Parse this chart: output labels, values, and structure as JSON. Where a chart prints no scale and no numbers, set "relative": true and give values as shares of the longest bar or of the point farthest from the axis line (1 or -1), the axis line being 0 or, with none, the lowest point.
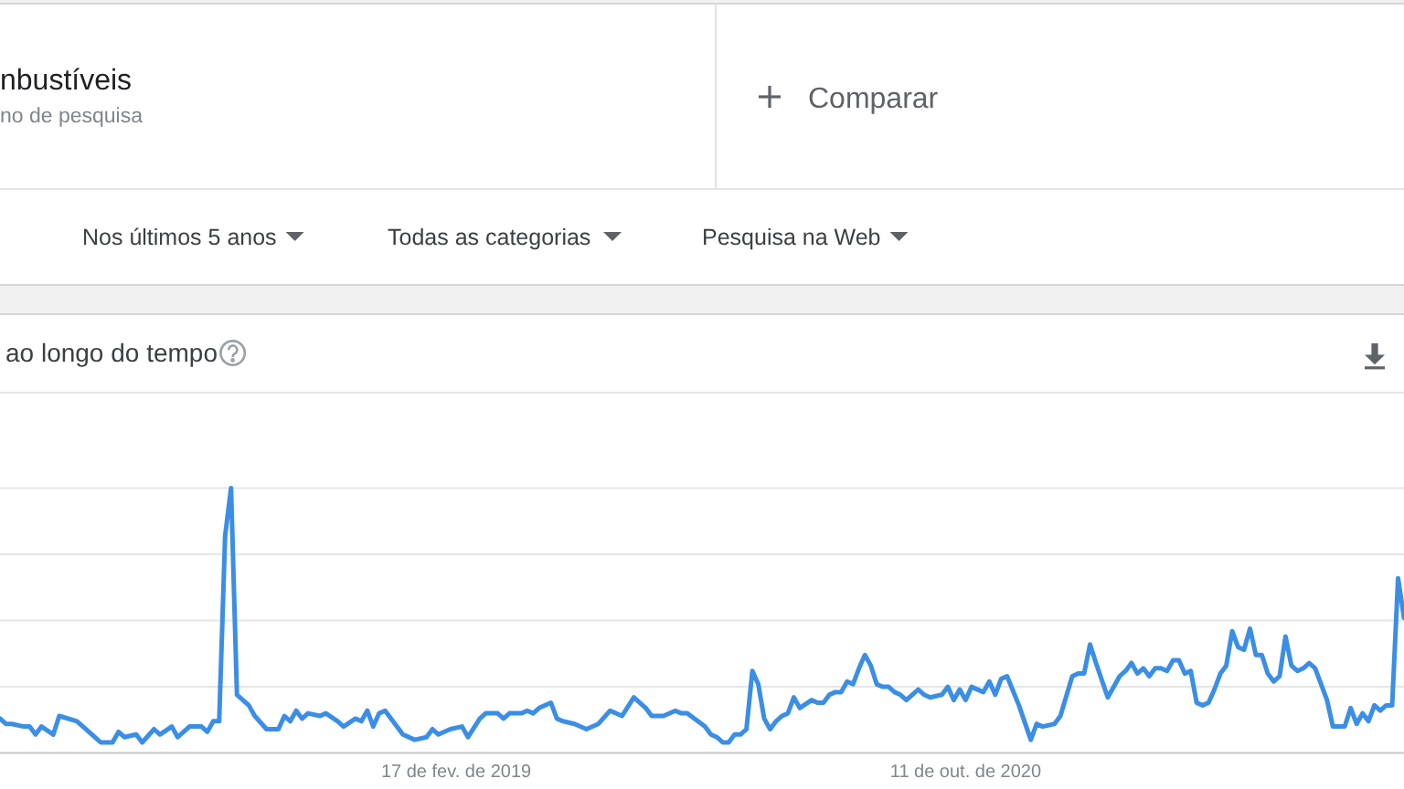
{
  "chart_data": {
    "type": "line",
    "title": "ao longo do tempo",
    "annotations": [
      "nbustíveis",
      "no de pesquisa",
      "Comparar",
      "Nos últimos 5 anos",
      "Todas as categorias",
      "Pesquisa na Web"
    ],
    "relative": true,
    "x": [
      "2017-08-27",
      "2017-09-03",
      "2017-09-10",
      "2017-09-24",
      "2017-10-01",
      "2017-10-08",
      "2017-10-15",
      "2017-10-29",
      "2017-11-05",
      "2017-11-26",
      "2017-12-17",
      "2017-12-24",
      "2018-01-07",
      "2018-01-14",
      "2018-01-21",
      "2018-02-04",
      "2018-02-11",
      "2018-02-25",
      "2018-03-04",
      "2018-03-18",
      "2018-03-25",
      "2018-04-08",
      "2018-04-22",
      "2018-04-29",
      "2018-05-06",
      "2018-05-13",
      "2018-05-20",
      "2018-05-27",
      "2018-06-03",
      "2018-06-17",
      "2018-06-24",
      "2018-07-08",
      "2018-07-22",
      "2018-07-29",
      "2018-08-05",
      "2018-08-12",
      "2018-08-19",
      "2018-08-26",
      "2018-09-09",
      "2018-09-16",
      "2018-09-30",
      "2018-10-07",
      "2018-10-21",
      "2018-10-28",
      "2018-11-04",
      "2018-11-11",
      "2018-11-18",
      "2018-11-25",
      "2018-12-09",
      "2018-12-16",
      "2018-12-30",
      "2019-01-13",
      "2019-01-20",
      "2019-01-27",
      "2019-02-10",
      "2019-02-24",
      "2019-03-03",
      "2019-03-17",
      "2019-03-24",
      "2019-04-07",
      "2019-04-14",
      "2019-04-21",
      "2019-05-05",
      "2019-05-12",
      "2019-05-19",
      "2019-05-26",
      "2019-06-09",
      "2019-06-16",
      "2019-06-23",
      "2019-07-07",
      "2019-07-21",
      "2019-08-04",
      "2019-08-18",
      "2019-09-01",
      "2019-09-15",
      "2019-09-29",
      "2019-10-06",
      "2019-10-20",
      "2019-11-03",
      "2019-11-10",
      "2019-11-17",
      "2019-12-08",
      "2019-12-15",
      "2019-12-22",
      "2019-12-29",
      "2020-01-05",
      "2020-01-12",
      "2020-01-19",
      "2020-01-26",
      "2020-02-02",
      "2020-02-09",
      "2020-02-16",
      "2020-02-23",
      "2020-03-01",
      "2020-03-08",
      "2020-03-15",
      "2020-03-22",
      "2020-03-29",
      "2020-04-12",
      "2020-04-19",
      "2020-04-26",
      "2020-05-03",
      "2020-05-10",
      "2020-05-17",
      "2020-05-24",
      "2020-05-31",
      "2020-06-07",
      "2020-06-14",
      "2020-06-21",
      "2020-06-28",
      "2020-07-05",
      "2020-07-12",
      "2020-07-19",
      "2020-07-26",
      "2020-08-02",
      "2020-08-09",
      "2020-08-16",
      "2020-08-23",
      "2020-08-30",
      "2020-09-13",
      "2020-09-20",
      "2020-09-27",
      "2020-10-04",
      "2020-10-11",
      "2020-10-18",
      "2020-11-01",
      "2020-11-08",
      "2020-11-15",
      "2020-11-22",
      "2020-11-29",
      "2020-12-13",
      "2020-12-27",
      "2021-01-03",
      "2021-01-10",
      "2021-01-24",
      "2021-01-31",
      "2021-02-14",
      "2021-02-21",
      "2021-02-28",
      "2021-03-07",
      "2021-03-14",
      "2021-03-28",
      "2021-04-11",
      "2021-04-18",
      "2021-04-25",
      "2021-05-02",
      "2021-05-09",
      "2021-05-16",
      "2021-05-23",
      "2021-05-30",
      "2021-06-06",
      "2021-06-13",
      "2021-06-20",
      "2021-06-27",
      "2021-07-04",
      "2021-07-11",
      "2021-07-18",
      "2021-07-25",
      "2021-08-01",
      "2021-08-08",
      "2021-08-15",
      "2021-08-22",
      "2021-08-29",
      "2021-09-05",
      "2021-09-12",
      "2021-09-19",
      "2021-09-26",
      "2021-10-03",
      "2021-10-10",
      "2021-10-17",
      "2021-10-24",
      "2021-10-31",
      "2021-11-07",
      "2021-11-14",
      "2021-11-21",
      "2021-11-28",
      "2021-12-05",
      "2021-12-12",
      "2021-12-19",
      "2021-12-26",
      "2022-01-02",
      "2022-01-09",
      "2022-01-16",
      "2022-01-23",
      "2022-01-30",
      "2022-02-06",
      "2022-02-13",
      "2022-02-20",
      "2022-02-27",
      "2022-03-06",
      "2022-03-13"
    ],
    "values": [
      0.13,
      0.11,
      0.11,
      0.1,
      0.1,
      0.07,
      0.1,
      0.07,
      0.14,
      0.12,
      0.06,
      0.04,
      0.04,
      0.08,
      0.06,
      0.07,
      0.04,
      0.09,
      0.07,
      0.1,
      0.06,
      0.1,
      0.1,
      0.08,
      0.12,
      0.12,
      0.82,
      1,
      0.22,
      0.18,
      0.14,
      0.09,
      0.09,
      0.14,
      0.12,
      0.16,
      0.13,
      0.15,
      0.14,
      0.15,
      0.12,
      0.1,
      0.13,
      0.12,
      0.16,
      0.1,
      0.15,
      0.16,
      0.1,
      0.07,
      0.05,
      0.06,
      0.09,
      0.07,
      0.09,
      0.1,
      0.06,
      0.13,
      0.15,
      0.15,
      0.13,
      0.15,
      0.15,
      0.16,
      0.15,
      0.17,
      0.19,
      0.13,
      0.12,
      0.11,
      0.09,
      0.11,
      0.16,
      0.14,
      0.21,
      0.17,
      0.14,
      0.14,
      0.16,
      0.15,
      0.15,
      0.1,
      0.07,
      0.06,
      0.04,
      0.04,
      0.07,
      0.07,
      0.09,
      0.31,
      0.26,
      0.13,
      0.09,
      0.12,
      0.14,
      0.15,
      0.21,
      0.17,
      0.2,
      0.19,
      0.19,
      0.22,
      0.23,
      0.23,
      0.27,
      0.26,
      0.32,
      0.37,
      0.33,
      0.26,
      0.25,
      0.25,
      0.23,
      0.22,
      0.2,
      0.22,
      0.24,
      0.22,
      0.21,
      0.22,
      0.25,
      0.2,
      0.24,
      0.2,
      0.25,
      0.23,
      0.27,
      0.22,
      0.28,
      0.29,
      0.18,
      0.05,
      0.11,
      0.1,
      0.11,
      0.14,
      0.29,
      0.3,
      0.3,
      0.41,
      0.34,
      0.21,
      0.29,
      0.31,
      0.34,
      0.3,
      0.32,
      0.29,
      0.32,
      0.32,
      0.31,
      0.35,
      0.35,
      0.3,
      0.31,
      0.19,
      0.18,
      0.19,
      0.24,
      0.3,
      0.33,
      0.46,
      0.4,
      0.39,
      0.47,
      0.37,
      0.37,
      0.3,
      0.27,
      0.29,
      0.44,
      0.33,
      0.31,
      0.32,
      0.34,
      0.32,
      0.26,
      0.2,
      0.1,
      0.1,
      0.1,
      0.17,
      0.11,
      0.15,
      0.12,
      0.18,
      0.16,
      0.18,
      0.18,
      0.66,
      0.51
    ],
    "color": "#3b8ee5",
    "xlim": [
      "2017-08-27",
      "2022-03-13"
    ],
    "xticks": [
      {
        "value": "2019-02-17",
        "label": "17 de fev. de 2019"
      },
      {
        "value": "2020-10-11",
        "label": "11 de out. de 2020"
      }
    ],
    "grid": "y",
    "line_style": "solid"
  }
}
